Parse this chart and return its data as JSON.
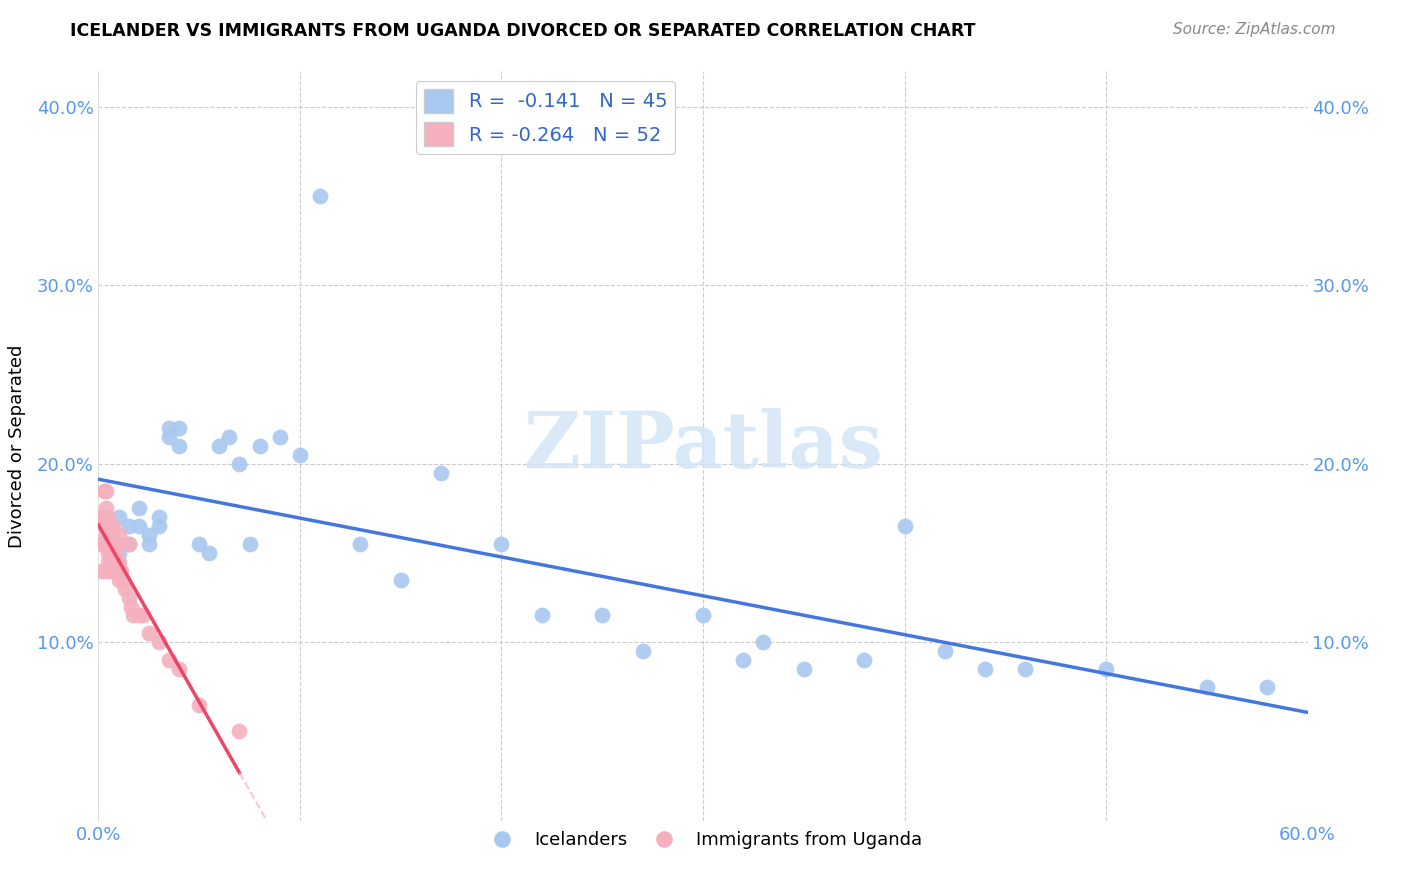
{
  "title": "ICELANDER VS IMMIGRANTS FROM UGANDA DIVORCED OR SEPARATED CORRELATION CHART",
  "source": "Source: ZipAtlas.com",
  "ylabel": "Divorced or Separated",
  "r_icelander": -0.141,
  "n_icelander": 45,
  "r_uganda": -0.264,
  "n_uganda": 52,
  "xlim": [
    0.0,
    0.6
  ],
  "ylim": [
    0.0,
    0.42
  ],
  "yticks": [
    0.1,
    0.2,
    0.3,
    0.4
  ],
  "ytick_labels": [
    "10.0%",
    "20.0%",
    "30.0%",
    "40.0%"
  ],
  "xticks": [
    0.0,
    0.1,
    0.2,
    0.3,
    0.4,
    0.5,
    0.6
  ],
  "xtick_labels": [
    "0.0%",
    "",
    "",
    "",
    "",
    "",
    "60.0%"
  ],
  "grid_color": "#cccccc",
  "blue_color": "#a8c8f0",
  "pink_color": "#f5b0be",
  "line_blue": "#4477dd",
  "line_pink": "#ee4466",
  "line_pink_dashed": "#f5b0be",
  "watermark_color": "#d0e4f7",
  "icelanders_x": [
    0.005,
    0.007,
    0.01,
    0.01,
    0.015,
    0.015,
    0.02,
    0.02,
    0.025,
    0.025,
    0.03,
    0.03,
    0.035,
    0.035,
    0.04,
    0.04,
    0.05,
    0.055,
    0.06,
    0.065,
    0.07,
    0.075,
    0.08,
    0.09,
    0.1,
    0.11,
    0.13,
    0.15,
    0.17,
    0.2,
    0.22,
    0.25,
    0.27,
    0.3,
    0.32,
    0.33,
    0.35,
    0.38,
    0.4,
    0.42,
    0.44,
    0.46,
    0.5,
    0.55,
    0.58
  ],
  "icelanders_y": [
    0.155,
    0.145,
    0.17,
    0.15,
    0.165,
    0.155,
    0.165,
    0.175,
    0.16,
    0.155,
    0.165,
    0.17,
    0.22,
    0.215,
    0.21,
    0.22,
    0.155,
    0.15,
    0.21,
    0.215,
    0.2,
    0.155,
    0.21,
    0.215,
    0.205,
    0.35,
    0.155,
    0.135,
    0.195,
    0.155,
    0.115,
    0.115,
    0.095,
    0.115,
    0.09,
    0.1,
    0.085,
    0.09,
    0.165,
    0.095,
    0.085,
    0.085,
    0.085,
    0.075,
    0.075
  ],
  "uganda_x": [
    0.002,
    0.002,
    0.002,
    0.003,
    0.003,
    0.003,
    0.003,
    0.004,
    0.004,
    0.004,
    0.004,
    0.004,
    0.005,
    0.005,
    0.005,
    0.005,
    0.005,
    0.005,
    0.006,
    0.006,
    0.006,
    0.006,
    0.007,
    0.007,
    0.007,
    0.007,
    0.008,
    0.008,
    0.008,
    0.008,
    0.009,
    0.009,
    0.009,
    0.01,
    0.01,
    0.01,
    0.01,
    0.011,
    0.012,
    0.013,
    0.015,
    0.015,
    0.016,
    0.017,
    0.02,
    0.022,
    0.025,
    0.03,
    0.035,
    0.04,
    0.05,
    0.07
  ],
  "uganda_y": [
    0.14,
    0.155,
    0.17,
    0.155,
    0.165,
    0.17,
    0.185,
    0.155,
    0.16,
    0.17,
    0.175,
    0.185,
    0.14,
    0.145,
    0.15,
    0.16,
    0.165,
    0.17,
    0.145,
    0.155,
    0.16,
    0.165,
    0.145,
    0.15,
    0.155,
    0.165,
    0.14,
    0.145,
    0.15,
    0.155,
    0.14,
    0.145,
    0.155,
    0.135,
    0.14,
    0.145,
    0.16,
    0.14,
    0.135,
    0.13,
    0.125,
    0.155,
    0.12,
    0.115,
    0.115,
    0.115,
    0.105,
    0.1,
    0.09,
    0.085,
    0.065,
    0.05
  ]
}
